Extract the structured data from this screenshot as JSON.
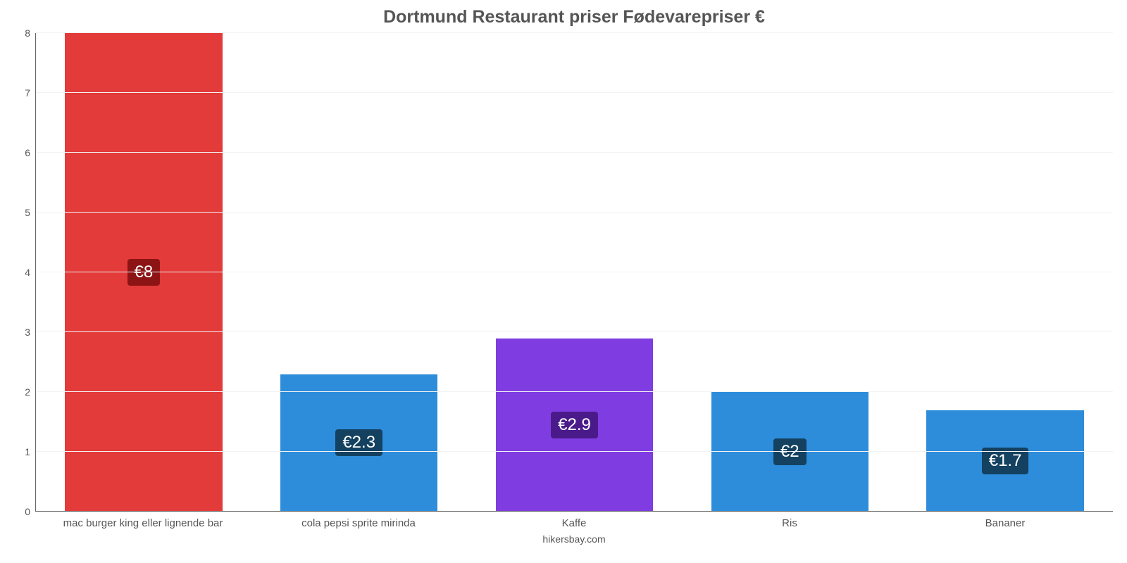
{
  "chart": {
    "type": "bar",
    "title": "Dortmund Restaurant priser Fødevarepriser €",
    "title_fontsize": 25,
    "title_color": "#555555",
    "background_color": "#ffffff",
    "grid_color": "#f3f3f3",
    "axis_color": "#666666",
    "ylim": [
      0,
      8
    ],
    "ytick_step": 1,
    "yticks": [
      0,
      1,
      2,
      3,
      4,
      5,
      6,
      7,
      8
    ],
    "ytick_labels": [
      "0",
      "1",
      "2",
      "3",
      "4",
      "5",
      "6",
      "7",
      "8"
    ],
    "tick_fontsize": 14,
    "tick_color": "#555555",
    "bar_width": 0.73,
    "categories": [
      "mac burger king eller lignende bar",
      "cola pepsi sprite mirinda",
      "Kaffe",
      "Ris",
      "Bananer"
    ],
    "values": [
      8,
      2.3,
      2.9,
      2,
      1.7
    ],
    "value_labels": [
      "€8",
      "€2.3",
      "€2.9",
      "€2",
      "€1.7"
    ],
    "bar_colors": [
      "#e33a3a",
      "#2d8ddb",
      "#7f3ce0",
      "#2d8ddb",
      "#2d8ddb"
    ],
    "badge_colors": [
      "#8c1414",
      "#144160",
      "#4a1a8a",
      "#144160",
      "#144160"
    ],
    "badge_fontsize": 24,
    "xlabel_fontsize": 15,
    "xlabel_color": "#555555",
    "credit": "hikersbay.com",
    "credit_fontsize": 14,
    "credit_color": "#555555"
  }
}
